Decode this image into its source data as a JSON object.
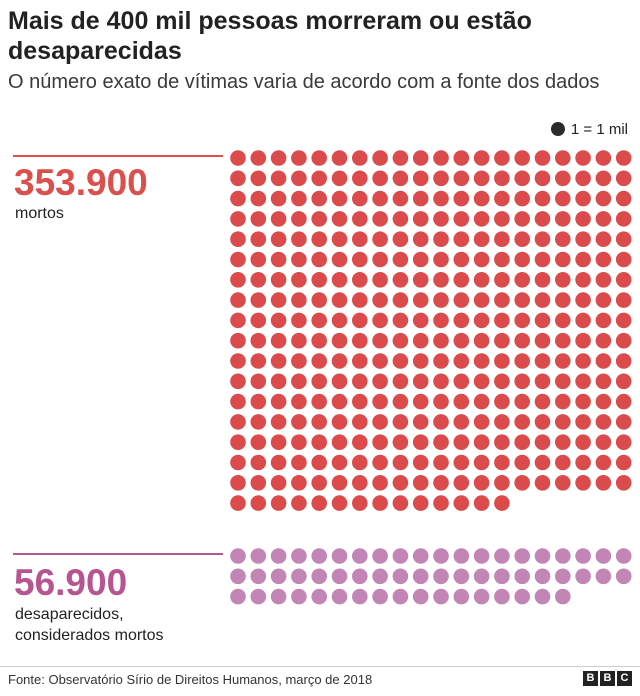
{
  "title": "Mais de 400 mil pessoas morreram ou estão desaparecidas",
  "subtitle": "O número exato de vítimas varia de acordo com a fonte dos dados",
  "legend": {
    "text": "1 = 1 mil",
    "color": "#2b2b2b"
  },
  "groups": [
    {
      "value_label": "353.900",
      "label": "mortos",
      "color": "#db4f4c"
    },
    {
      "value_label": "56.900",
      "label": "desaparecidos, considerados mortos",
      "color": "#b6558f"
    }
  ],
  "chart_data": {
    "type": "waffle",
    "unit": "1 = 1 mil",
    "series": [
      {
        "name": "mortos",
        "value": 353.9,
        "dots": 354,
        "color": "#db4f4c",
        "dot_color": "#dc4b4c"
      },
      {
        "name": "desaparecidos, considerados mortos",
        "value": 56.9,
        "dots": 57,
        "color": "#b6558f",
        "dot_color": "#c285b5"
      }
    ],
    "columns": 20
  },
  "footer": {
    "source": "Fonte: Observatório Sírio de Direitos Humanos, março de 2018",
    "logo": [
      "B",
      "B",
      "C"
    ]
  }
}
